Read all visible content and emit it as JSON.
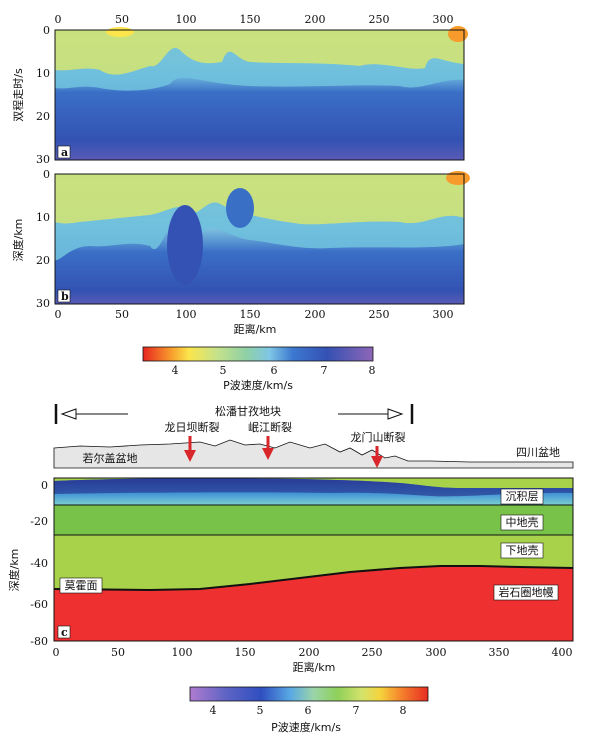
{
  "panel_a": {
    "tag": "a",
    "ylabel": "双程走时/s",
    "x_ticks": [
      "0",
      "50",
      "100",
      "150",
      "200",
      "250",
      "300"
    ],
    "y_ticks": [
      "0",
      "10",
      "20",
      "30"
    ]
  },
  "panel_b": {
    "tag": "b",
    "ylabel": "深度/km",
    "xlabel": "距离/km",
    "x_ticks": [
      "0",
      "50",
      "100",
      "150",
      "200",
      "250",
      "300"
    ],
    "y_ticks": [
      "0",
      "10",
      "20",
      "30"
    ]
  },
  "colorbar_top": {
    "label": "P波速度/km/s",
    "ticks": [
      "4",
      "5",
      "6",
      "7",
      "8"
    ]
  },
  "cross_section": {
    "block_label": "松潘甘孜地块",
    "faults": [
      "龙日坝断裂",
      "岷江断裂",
      "龙门山断裂"
    ],
    "basin_left": "若尔盖盆地",
    "basin_right": "四川盆地"
  },
  "panel_c": {
    "tag": "c",
    "ylabel": "深度/km",
    "xlabel": "距离/km",
    "x_ticks": [
      "0",
      "50",
      "100",
      "150",
      "200",
      "250",
      "300",
      "350",
      "400"
    ],
    "y_ticks": [
      "0",
      "-20",
      "-40",
      "-60",
      "-80"
    ],
    "layers": [
      "沉积层",
      "中地壳",
      "下地壳",
      "岩石圈地幔"
    ],
    "moho_label": "莫霍面"
  },
  "colorbar_bottom": {
    "label": "P波速度/km/s",
    "ticks": [
      "4",
      "5",
      "6",
      "7",
      "8"
    ]
  },
  "colors": {
    "deep_blue": "#2f55b3",
    "mid_crust": "#79c24a",
    "lower_crust": "#a8d24a",
    "mantle": "#ee3030"
  }
}
